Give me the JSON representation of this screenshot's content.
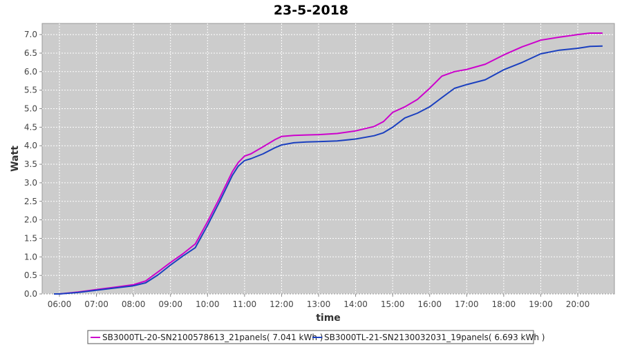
{
  "chart_data": {
    "type": "line",
    "title": "23-5-2018",
    "xlabel": "time",
    "ylabel": "Watt",
    "ylim": [
      0,
      7.3
    ],
    "y_ticks": [
      "0.0",
      "0.5",
      "1.0",
      "1.5",
      "2.0",
      "2.5",
      "3.0",
      "3.5",
      "4.0",
      "4.5",
      "5.0",
      "5.5",
      "6.0",
      "6.5",
      "7.0"
    ],
    "x_ticks": [
      "06:00",
      "07:00",
      "08:00",
      "09:00",
      "10:00",
      "11:00",
      "12:00",
      "13:00",
      "14:00",
      "15:00",
      "16:00",
      "17:00",
      "18:00",
      "19:00",
      "20:00"
    ],
    "grid": true,
    "legend_position": "bottom",
    "background": "#cccccc",
    "x_hours": [
      5.85,
      6.0,
      6.5,
      7.0,
      7.5,
      8.0,
      8.33,
      8.67,
      9.0,
      9.33,
      9.67,
      10.0,
      10.33,
      10.67,
      10.83,
      11.0,
      11.17,
      11.5,
      11.83,
      12.0,
      12.33,
      12.67,
      13.0,
      13.5,
      14.0,
      14.5,
      14.75,
      15.0,
      15.33,
      15.67,
      16.0,
      16.33,
      16.67,
      17.0,
      17.5,
      18.0,
      18.5,
      19.0,
      19.5,
      20.0,
      20.33,
      20.67
    ],
    "series": [
      {
        "name": "SB3000TL-20-SN2100578613_21panels( 7.041 kWh )",
        "color": "#cc00cc",
        "values": [
          0.0,
          0.0,
          0.05,
          0.12,
          0.18,
          0.25,
          0.35,
          0.6,
          0.85,
          1.08,
          1.35,
          1.95,
          2.6,
          3.3,
          3.55,
          3.72,
          3.78,
          3.97,
          4.17,
          4.25,
          4.28,
          4.29,
          4.3,
          4.33,
          4.4,
          4.52,
          4.65,
          4.9,
          5.05,
          5.25,
          5.55,
          5.88,
          6.0,
          6.06,
          6.2,
          6.45,
          6.67,
          6.85,
          6.93,
          7.0,
          7.04,
          7.04
        ]
      },
      {
        "name": "SB3000TL-21-SN2130032031_19panels( 6.693 kWh )",
        "color": "#1a3fbf",
        "values": [
          0.0,
          0.0,
          0.04,
          0.1,
          0.16,
          0.22,
          0.3,
          0.52,
          0.78,
          1.02,
          1.25,
          1.85,
          2.5,
          3.2,
          3.45,
          3.6,
          3.65,
          3.78,
          3.95,
          4.02,
          4.08,
          4.1,
          4.11,
          4.13,
          4.18,
          4.27,
          4.35,
          4.5,
          4.75,
          4.88,
          5.05,
          5.3,
          5.55,
          5.65,
          5.78,
          6.05,
          6.25,
          6.48,
          6.58,
          6.63,
          6.68,
          6.69
        ]
      }
    ]
  }
}
